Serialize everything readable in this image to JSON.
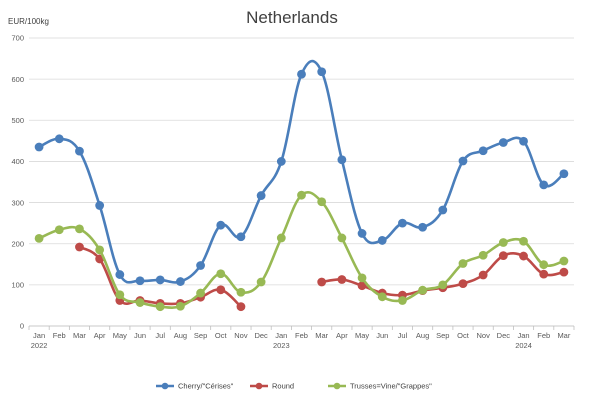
{
  "chart_data": {
    "type": "line",
    "title": "Netherlands",
    "ylabel": "EUR/100kg",
    "xlabel": "",
    "ylim": [
      0,
      700
    ],
    "yticks": [
      0,
      100,
      200,
      300,
      400,
      500,
      600,
      700
    ],
    "grid": true,
    "legend_position": "bottom",
    "categories": [
      "Jan",
      "Feb",
      "Mar",
      "Apr",
      "May",
      "Jun",
      "Jul",
      "Aug",
      "Sep",
      "Oct",
      "Nov",
      "Dec",
      "Jan",
      "Feb",
      "Mar",
      "Apr",
      "May",
      "Jun",
      "Jul",
      "Aug",
      "Sep",
      "Oct",
      "Nov",
      "Dec",
      "Jan",
      "Feb",
      "Mar"
    ],
    "year_labels": [
      {
        "index": 0,
        "label": "2022"
      },
      {
        "index": 12,
        "label": "2023"
      },
      {
        "index": 24,
        "label": "2024"
      }
    ],
    "series": [
      {
        "name": "Cherry/\"Cérises\"",
        "color": "#4a7ebb",
        "values": [
          435,
          455,
          425,
          293,
          125,
          110,
          112,
          108,
          147,
          245,
          217,
          317,
          400,
          612,
          618,
          404,
          225,
          208,
          250,
          240,
          282,
          401,
          426,
          446,
          449,
          343,
          370
        ]
      },
      {
        "name": "Round",
        "color": "#be4b48",
        "values": [
          null,
          null,
          192,
          163,
          62,
          62,
          55,
          55,
          70,
          88,
          47,
          null,
          null,
          null,
          107,
          113,
          98,
          80,
          75,
          86,
          93,
          103,
          124,
          171,
          170,
          126,
          131
        ]
      },
      {
        "name": "Trusses=Vine/\"Grappes\"",
        "color": "#98b954",
        "values": [
          213,
          234,
          236,
          185,
          76,
          57,
          47,
          48,
          80,
          127,
          82,
          107,
          214,
          318,
          302,
          214,
          117,
          71,
          62,
          87,
          100,
          152,
          172,
          203,
          206,
          149,
          158
        ]
      }
    ]
  }
}
